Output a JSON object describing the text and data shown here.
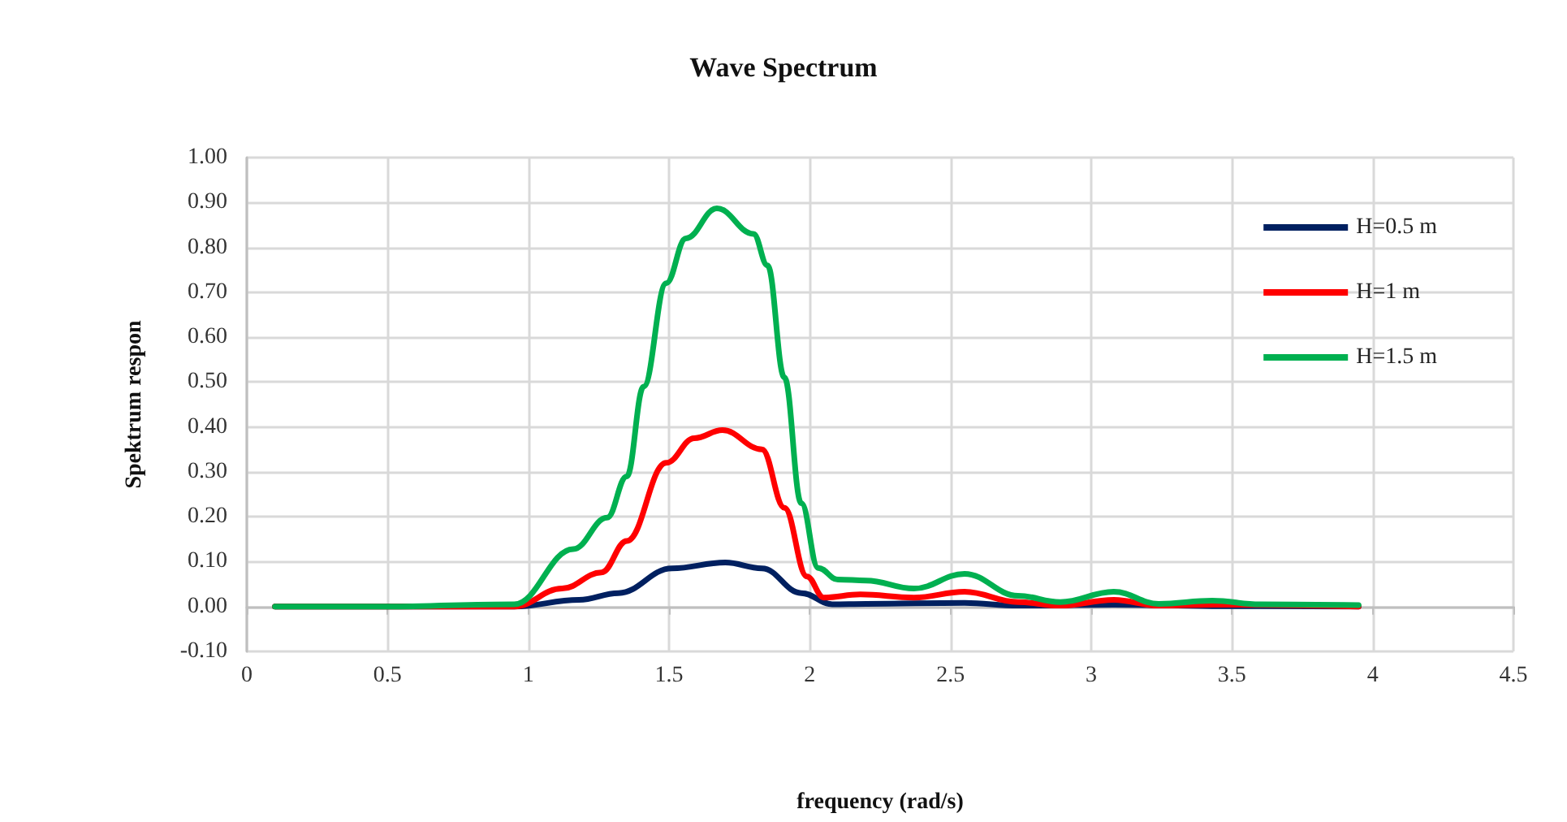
{
  "chart_data": {
    "type": "line",
    "title": "Wave Spectrum",
    "xlabel": "frequency (rad/s)",
    "ylabel": "Spektrum respon",
    "xlim": [
      0,
      4.5
    ],
    "xticks": [
      0,
      0.5,
      1,
      1.5,
      2,
      2.5,
      3,
      3.5,
      4,
      4.5
    ],
    "ylim": [
      -0.1,
      1.0
    ],
    "yticks": [
      {
        "value": -0.1,
        "label": "-0.10"
      },
      {
        "value": 0,
        "label": "0.00"
      },
      {
        "value": 0.1,
        "label": "0.10"
      },
      {
        "value": 0.2,
        "label": "0.20"
      },
      {
        "value": 0.3,
        "label": "0.30"
      },
      {
        "value": 0.4,
        "label": "0.40"
      },
      {
        "value": 0.5,
        "label": "0.50"
      },
      {
        "value": 0.6,
        "label": "0.60"
      },
      {
        "value": 0.7,
        "label": "0.70"
      },
      {
        "value": 0.8,
        "label": "0.80"
      },
      {
        "value": 0.9,
        "label": "0.90"
      },
      {
        "value": 1.0,
        "label": "1.00"
      }
    ],
    "grid": true,
    "legend": "top right",
    "marker": "none",
    "line_style": "solid",
    "series": [
      {
        "name": "H=0.5 m",
        "color": "#002060",
        "x": [
          0.1,
          0.5,
          0.95,
          1.18,
          1.32,
          1.51,
          1.7,
          1.83,
          1.97,
          2.08,
          2.2,
          2.55,
          2.74,
          3.08,
          3.43,
          3.95
        ],
        "values": [
          0,
          0,
          0,
          0.015,
          0.03,
          0.085,
          0.098,
          0.085,
          0.03,
          0.005,
          0.006,
          0.008,
          0.002,
          0.004,
          0.001,
          0
        ]
      },
      {
        "name": "H=1 m",
        "color": "#ff0000",
        "x": [
          0.1,
          0.5,
          0.95,
          1.12,
          1.26,
          1.35,
          1.49,
          1.59,
          1.69,
          1.83,
          1.91,
          1.99,
          2.05,
          2.18,
          2.37,
          2.55,
          2.74,
          2.89,
          3.08,
          3.24,
          3.43,
          3.95
        ],
        "values": [
          0,
          0,
          0,
          0.04,
          0.076,
          0.146,
          0.32,
          0.375,
          0.393,
          0.35,
          0.22,
          0.067,
          0.02,
          0.027,
          0.02,
          0.033,
          0.01,
          0.002,
          0.015,
          0.002,
          0.004,
          0
        ]
      },
      {
        "name": "H=1.5 m",
        "color": "#00b050",
        "x": [
          0.1,
          0.5,
          0.95,
          1.16,
          1.28,
          1.35,
          1.41,
          1.49,
          1.56,
          1.67,
          1.8,
          1.85,
          1.91,
          1.97,
          2.03,
          2.1,
          2.2,
          2.37,
          2.55,
          2.74,
          2.89,
          3.08,
          3.24,
          3.43,
          3.6,
          3.95
        ],
        "values": [
          0,
          0,
          0.005,
          0.128,
          0.198,
          0.29,
          0.49,
          0.72,
          0.82,
          0.887,
          0.83,
          0.76,
          0.51,
          0.23,
          0.086,
          0.06,
          0.058,
          0.04,
          0.073,
          0.024,
          0.01,
          0.033,
          0.006,
          0.013,
          0.005,
          0.003
        ]
      }
    ]
  }
}
